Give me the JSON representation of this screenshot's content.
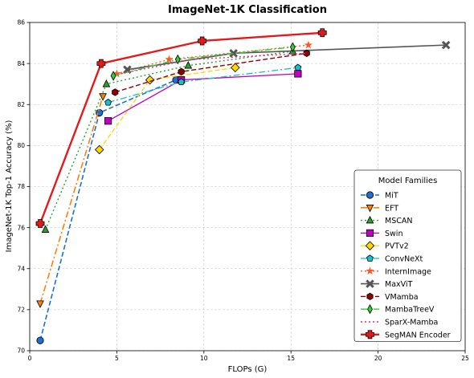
{
  "chart_data": {
    "type": "line",
    "title": "ImageNet-1K Classification",
    "xlabel": "FLOPs (G)",
    "ylabel": "ImageNet-1K Top-1 Accuracy (%)",
    "xlim": [
      0,
      25
    ],
    "ylim": [
      70,
      86
    ],
    "xticks": [
      0,
      5,
      10,
      15,
      20,
      25
    ],
    "yticks": [
      70,
      72,
      74,
      76,
      78,
      80,
      82,
      84,
      86
    ],
    "grid": true,
    "legend_title": "Model Families",
    "legend_position": "lower-right",
    "series": [
      {
        "name": "MiT",
        "color": "#1f6fd1",
        "dash": "6,3",
        "width": 1.6,
        "marker": "circle",
        "points": [
          [
            0.6,
            70.5
          ],
          [
            4.0,
            81.6
          ],
          [
            8.4,
            83.2
          ]
        ]
      },
      {
        "name": "EFT",
        "color": "#ff7f0e",
        "dash": "8,3,2,3",
        "width": 1.6,
        "marker": "triangle-down",
        "points": [
          [
            0.6,
            72.3
          ],
          [
            4.2,
            82.4
          ]
        ]
      },
      {
        "name": "MSCAN",
        "color": "#2ca02c",
        "dash": "2,3",
        "width": 1.4,
        "marker": "triangle-up",
        "points": [
          [
            0.9,
            75.9
          ],
          [
            4.4,
            83.0
          ],
          [
            9.1,
            83.9
          ],
          [
            15.1,
            84.6
          ]
        ]
      },
      {
        "name": "Swin",
        "color": "#c000c0",
        "dash": "",
        "width": 1.3,
        "marker": "square",
        "points": [
          [
            4.5,
            81.2
          ],
          [
            8.7,
            83.2
          ],
          [
            15.4,
            83.5
          ]
        ]
      },
      {
        "name": "PVTv2",
        "color": "#ffd700",
        "dash": "6,3",
        "width": 1.3,
        "marker": "diamond",
        "points": [
          [
            4.0,
            79.8
          ],
          [
            6.9,
            83.2
          ],
          [
            11.8,
            83.8
          ]
        ]
      },
      {
        "name": "ConvNeXt",
        "color": "#17becf",
        "dash": "8,3,2,3",
        "width": 1.3,
        "marker": "pentagon",
        "points": [
          [
            4.5,
            82.1
          ],
          [
            8.7,
            83.1
          ],
          [
            15.4,
            83.8
          ]
        ]
      },
      {
        "name": "InternImage",
        "color": "#ff5722",
        "dash": "2,3",
        "width": 1.3,
        "marker": "star",
        "points": [
          [
            5.0,
            83.5
          ],
          [
            8.0,
            84.2
          ],
          [
            16.0,
            84.9
          ]
        ]
      },
      {
        "name": "MaxViT",
        "color": "#555555",
        "dash": "",
        "width": 1.6,
        "marker": "x",
        "points": [
          [
            5.6,
            83.7
          ],
          [
            11.7,
            84.5
          ],
          [
            23.9,
            84.9
          ]
        ]
      },
      {
        "name": "VMamba",
        "color": "#8b0000",
        "dash": "6,3",
        "width": 1.4,
        "marker": "hexagon",
        "points": [
          [
            4.9,
            82.6
          ],
          [
            8.7,
            83.6
          ],
          [
            15.9,
            84.5
          ]
        ]
      },
      {
        "name": "MambaTreeV",
        "color": "#32cd32",
        "dash": "8,3,2,3",
        "width": 1.4,
        "marker": "thin-diamond",
        "points": [
          [
            4.8,
            83.4
          ],
          [
            8.5,
            84.2
          ],
          [
            15.1,
            84.8
          ]
        ]
      },
      {
        "name": "SparX-Mamba",
        "color": "#e7298a",
        "dash": "2,3",
        "width": 1.4,
        "marker": "none",
        "points": [
          [
            5.2,
            83.5
          ],
          [
            9.3,
            84.2
          ],
          [
            15.9,
            84.5
          ]
        ]
      },
      {
        "name": "SegMAN Encoder",
        "color": "#e31a1c",
        "dash": "",
        "width": 2.4,
        "marker": "plus",
        "points": [
          [
            0.6,
            76.2
          ],
          [
            4.1,
            84.0
          ],
          [
            9.9,
            85.1
          ],
          [
            16.8,
            85.5
          ]
        ]
      }
    ]
  }
}
